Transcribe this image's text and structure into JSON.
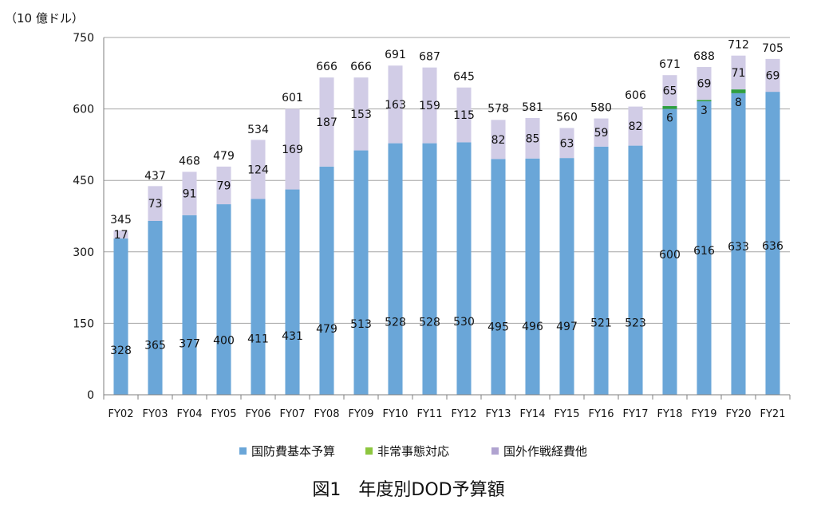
{
  "chart_data": {
    "type": "bar",
    "stacked": true,
    "unit_label": "（10 億ドル）",
    "caption": "図1　年度別DOD予算額",
    "categories": [
      "FY02",
      "FY03",
      "FY04",
      "FY05",
      "FY06",
      "FY07",
      "FY08",
      "FY09",
      "FY10",
      "FY11",
      "FY12",
      "FY13",
      "FY14",
      "FY15",
      "FY16",
      "FY17",
      "FY18",
      "FY19",
      "FY20",
      "FY21"
    ],
    "series": [
      {
        "name": "国防費基本予算",
        "color": "#6aa6d8",
        "values": [
          328,
          365,
          377,
          400,
          411,
          431,
          479,
          513,
          528,
          528,
          530,
          495,
          496,
          497,
          521,
          523,
          600,
          616,
          633,
          636
        ]
      },
      {
        "name": "非常事態対応",
        "color": "#2e9e3f",
        "legend_color": "#8dc63f",
        "values": [
          0,
          0,
          0,
          0,
          0,
          0,
          0,
          0,
          0,
          0,
          0,
          0,
          0,
          0,
          0,
          0,
          6,
          3,
          8,
          0
        ]
      },
      {
        "name": "国外作戦経費他",
        "color": "#d1cce6",
        "legend_color": "#b0a3d0",
        "values": [
          17,
          73,
          91,
          79,
          124,
          169,
          187,
          153,
          163,
          159,
          115,
          82,
          85,
          63,
          59,
          82,
          65,
          69,
          71,
          69
        ]
      }
    ],
    "totals": [
      345,
      437,
      468,
      479,
      534,
      601,
      666,
      666,
      691,
      687,
      645,
      578,
      581,
      560,
      580,
      606,
      671,
      688,
      712,
      705
    ],
    "segment_labels": {
      "base": [
        "328",
        "365",
        "377",
        "400",
        "411",
        "431",
        "479",
        "513",
        "528",
        "528",
        "530",
        "495",
        "496",
        "497",
        "521",
        "523",
        "600",
        "616",
        "633",
        "636"
      ],
      "emergency": [
        "",
        "",
        "",
        "",
        "",
        "",
        "",
        "",
        "",
        "",
        "",
        "",
        "",
        "",
        "",
        "",
        "6",
        "3",
        "8",
        ""
      ],
      "overseas": [
        "17",
        "73",
        "91",
        "79",
        "124",
        "169",
        "187",
        "153",
        "163",
        "159",
        "115",
        "82",
        "85",
        "63",
        "59",
        "82",
        "65",
        "69",
        "71",
        "69"
      ]
    },
    "y_ticks": [
      "0",
      "150",
      "300",
      "450",
      "600",
      "750"
    ],
    "ylim": [
      0,
      750
    ],
    "grid": true,
    "legend_position": "bottom"
  }
}
